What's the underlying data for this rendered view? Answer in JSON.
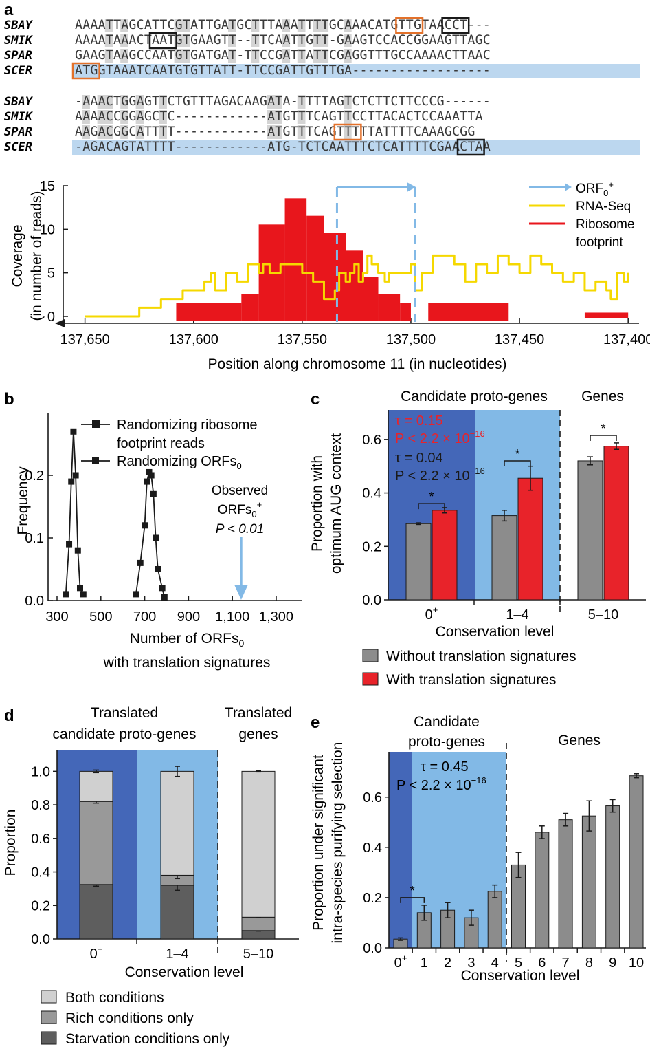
{
  "panel_a": {
    "letter": "a",
    "alignment_block1": {
      "species": [
        "SBAY",
        "SMIK",
        "SPAR",
        "SCER"
      ],
      "sequences": [
        "AAAATTAGCATTCGTATTGATGCTTTAAATTTTGCAAACATGTTGTAACCT---",
        "AAAATAAACTAATGTGAAGTT--TTCAATTGTT-GAAGTCCACCGGAAGTTAGC",
        "GAAGTAAGCCAATGTGATGAT-TTCCGATTATTCGAGGTTTGCCAAAACTTAAC",
        "ATGGTAAATCAATGTGTTATT-TTCCGATTGTTTGA------------------"
      ]
    },
    "alignment_block2": {
      "species": [
        "SBAY",
        "SMIK",
        "SPAR",
        "SCER"
      ],
      "sequences": [
        "-AAACTGGAGTTCTGTTTAGACAAGATA-TTTTAGTCTCTTCTTCCCG------",
        "AAAACCGGAGCTC------------ATGTTTCAGTTCCTTACACTCCAAATTA",
        "AAGACGGCATTTT------------ATGTTTCAGTTTTTATTTTCAAAGCGG",
        "-AGACAGTATTTT------------ATG-TCTCAATTTCTCATTTTCGAACTAA"
      ]
    },
    "chart_data": {
      "type": "line",
      "ylabel": "Coverage\n(in number of reads)",
      "xlabel": "Position along chromosome 11 (in nucleotides)",
      "x_ticks": [
        "137,650",
        "137,600",
        "137,550",
        "137,500",
        "137,450",
        "137,400"
      ],
      "y_ticks": [
        "0",
        "5",
        "10",
        "15"
      ],
      "xlim": [
        137660,
        137395
      ],
      "ylim": [
        0,
        15
      ],
      "x_reversed": true,
      "legend": [
        "ORF0+",
        "RNA-Seq",
        "Ribosome footprint"
      ],
      "orf_region": [
        137534,
        137498
      ],
      "series": [
        {
          "name": "RNA-Seq",
          "color": "#f5d800",
          "x": [
            137650,
            137630,
            137625,
            137615,
            137610,
            137605,
            137595,
            137592,
            137590,
            137585,
            137580,
            137575,
            137570,
            137568,
            137565,
            137560,
            137555,
            137550,
            137545,
            137540,
            137535,
            137533,
            137530,
            137528,
            137526,
            137524,
            137522,
            137520,
            137518,
            137515,
            137512,
            137510,
            137505,
            137500,
            137498,
            137495,
            137490,
            137485,
            137480,
            137475,
            137470,
            137465,
            137460,
            137455,
            137450,
            137445,
            137440,
            137435,
            137430,
            137425,
            137420,
            137415,
            137412,
            137410,
            137408,
            137405,
            137402,
            137400
          ],
          "y": [
            0,
            0,
            1,
            2,
            2,
            3,
            4,
            5,
            3,
            5,
            4,
            6,
            5,
            6,
            5,
            6,
            6,
            5,
            4,
            2,
            3,
            5,
            4,
            5,
            6,
            4,
            5,
            7,
            6,
            5,
            4,
            5,
            5,
            6,
            3,
            5,
            7,
            7,
            6,
            4,
            6,
            5,
            7,
            6,
            5,
            7,
            6,
            5,
            4,
            5,
            3,
            4,
            4,
            3,
            2,
            5,
            4,
            5
          ]
        },
        {
          "name": "Ribosome footprint",
          "color": "#e8161c",
          "segments": [
            [
              137608,
              137578,
              1
            ],
            [
              137578,
              137570,
              2
            ],
            [
              137570,
              137558,
              10
            ],
            [
              137558,
              137548,
              13
            ],
            [
              137548,
              137540,
              11
            ],
            [
              137540,
              137530,
              9
            ],
            [
              137530,
              137522,
              7
            ],
            [
              137522,
              137515,
              4
            ],
            [
              137515,
              137505,
              2
            ],
            [
              137505,
              137500,
              1
            ],
            [
              137492,
              137455,
              1
            ],
            [
              137420,
              137400,
              0.2
            ]
          ]
        }
      ]
    },
    "legend_labels": {
      "orf": "ORF0+",
      "rnaseq": "RNA-Seq",
      "ribo1": "Ribosome",
      "ribo2": "footprint"
    }
  },
  "panel_b": {
    "letter": "b",
    "chart_data": {
      "type": "line",
      "xlabel": "Number of ORFs0\nwith translation signatures",
      "ylabel": "Frequency",
      "x_ticks": [
        "300",
        "500",
        "700",
        "900",
        "1,100",
        "1,300"
      ],
      "y_ticks": [
        "0.0",
        "0.1",
        "0.2"
      ],
      "xlim": [
        300,
        1400
      ],
      "ylim": [
        0,
        0.3
      ],
      "series": [
        {
          "name": "Randomizing ribosome footprint reads",
          "x": [
            340,
            355,
            365,
            375,
            385,
            395,
            405,
            420
          ],
          "y": [
            0.01,
            0.09,
            0.19,
            0.27,
            0.2,
            0.08,
            0.02,
            0.01
          ]
        },
        {
          "name": "Randomizing ORFs0",
          "x": [
            660,
            680,
            700,
            710,
            720,
            730,
            740,
            750,
            760,
            780,
            790
          ],
          "y": [
            0.01,
            0.06,
            0.12,
            0.19,
            0.205,
            0.2,
            0.17,
            0.1,
            0.05,
            0.02,
            0.005
          ]
        }
      ],
      "observed": {
        "x": 1140,
        "label1": "Observed",
        "label2": "ORFs0+",
        "label3": "P < 0.01"
      }
    },
    "legend_labels": [
      "Randomizing ribosome",
      "footprint reads",
      "Randomizing ORFs0"
    ],
    "xlabel_line1": "Number of ORFs0",
    "xlabel_line2": "with translation signatures"
  },
  "panel_c": {
    "letter": "c",
    "chart_data": {
      "type": "bar",
      "categories": [
        "0+",
        "1–4",
        "5–10"
      ],
      "series": [
        {
          "name": "Without translation signatures",
          "color": "#8c8c8c",
          "values": [
            0.285,
            0.315,
            0.52
          ],
          "err": [
            0.003,
            0.02,
            0.015
          ]
        },
        {
          "name": "With translation signatures",
          "color": "#e8232a",
          "values": [
            0.335,
            0.455,
            0.575
          ],
          "err": [
            0.01,
            0.045,
            0.012
          ]
        }
      ],
      "ylim": [
        0,
        0.7
      ],
      "y_ticks": [
        "0.0",
        "0.2",
        "0.4",
        "0.6"
      ],
      "ylabel": "Proportion with\noptimum AUG context",
      "xlabel": "Conservation level"
    },
    "header_left": "Candidate proto-genes",
    "header_right": "Genes",
    "tau_red": "τ = 0.15",
    "p_red": "P < 2.2 × 10",
    "tau_black": "τ = 0.04",
    "p_black": "P < 2.2 × 10",
    "exp": "−16",
    "star": "*",
    "legend": [
      "Without translation signatures",
      "With translation signatures"
    ]
  },
  "panel_d": {
    "letter": "d",
    "chart_data": {
      "type": "bar",
      "stacked": true,
      "categories": [
        "0+",
        "1–4",
        "5–10"
      ],
      "series": [
        {
          "name": "Starvation conditions only",
          "color": "#5e5e5e",
          "values": [
            0.325,
            0.32,
            0.05
          ]
        },
        {
          "name": "Rich conditions only",
          "color": "#999999",
          "values": [
            0.495,
            0.06,
            0.08
          ]
        },
        {
          "name": "Both conditions",
          "color": "#d0d0d0",
          "values": [
            0.18,
            0.62,
            0.87
          ]
        }
      ],
      "ylim": [
        0,
        1.1
      ],
      "y_ticks": [
        "0.0",
        "0.2",
        "0.4",
        "0.6",
        "0.8",
        "1.0"
      ],
      "ylabel": "Proportion",
      "xlabel": "Conservation level"
    },
    "header_left1": "Translated",
    "header_left2": "candidate proto-genes",
    "header_right1": "Translated",
    "header_right2": "genes",
    "legend": [
      "Both conditions",
      "Rich conditions only",
      "Starvation conditions only"
    ]
  },
  "panel_e": {
    "letter": "e",
    "chart_data": {
      "type": "bar",
      "categories": [
        "0+",
        "1",
        "2",
        "3",
        "4",
        "5",
        "6",
        "7",
        "8",
        "9",
        "10"
      ],
      "values": [
        0.035,
        0.14,
        0.15,
        0.12,
        0.225,
        0.33,
        0.46,
        0.51,
        0.525,
        0.565,
        0.685
      ],
      "err": [
        0.005,
        0.03,
        0.03,
        0.03,
        0.025,
        0.05,
        0.025,
        0.025,
        0.06,
        0.025,
        0.008
      ],
      "ylim": [
        0,
        0.78
      ],
      "y_ticks": [
        "0.0",
        "0.2",
        "0.4",
        "0.6"
      ],
      "ylabel": "Proportion under significant\nintra-species purifying selection",
      "xlabel": "Conservation level"
    },
    "header_left1": "Candidate",
    "header_left2": "proto-genes",
    "header_right": "Genes",
    "tau": "τ = 0.45",
    "p": "P < 2.2 × 10",
    "exp": "−16",
    "star": "*"
  },
  "colors": {
    "dark_blue": "#4467b8",
    "light_blue": "#82b9e6",
    "seq_highlight": "#bcd7ef",
    "gray_box": "#d4d4d4",
    "orange_box": "#e3712a",
    "arrow_blue": "#82b9e6"
  }
}
